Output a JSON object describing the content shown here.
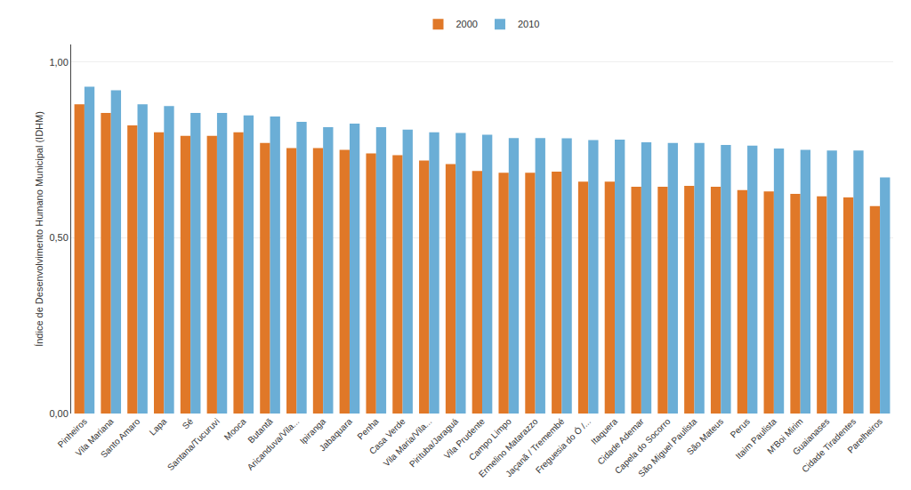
{
  "chart_data": {
    "type": "bar",
    "categories": [
      "Pinheiros",
      "Vila Mariana",
      "Santo Amaro",
      "Lapa",
      "Sé",
      "Santana/Tucuruvi",
      "Mooca",
      "Butantã",
      "Aricanduva/Vila...",
      "Ipiranga",
      "Jabaquara",
      "Penha",
      "Casa Verde",
      "Vila Maria/Vila...",
      "Pirituba/Jaraguá",
      "Vila Prudente",
      "Campo Limpo",
      "Ermelino Matarazzo",
      "Jaçanã / Tremembé",
      "Freguesia do Ó /...",
      "Itaquera",
      "Cidade Ademar",
      "Capela do Socorro",
      "São Miguel Paulista",
      "São Mateus",
      "Perus",
      "Itaim Paulista",
      "M'Boi Mirim",
      "Guaianases",
      "Cidade Tiradentes",
      "Parelheiros"
    ],
    "series": [
      {
        "name": "2000",
        "color": "#E07828",
        "values": [
          0.88,
          0.855,
          0.82,
          0.8,
          0.79,
          0.79,
          0.8,
          0.77,
          0.755,
          0.755,
          0.75,
          0.74,
          0.735,
          0.72,
          0.71,
          0.69,
          0.685,
          0.685,
          0.688,
          0.66,
          0.66,
          0.645,
          0.645,
          0.648,
          0.645,
          0.636,
          0.632,
          0.625,
          0.618,
          0.615,
          0.59
        ]
      },
      {
        "name": "2010",
        "color": "#6BAED6",
        "values": [
          0.93,
          0.92,
          0.88,
          0.875,
          0.855,
          0.855,
          0.848,
          0.845,
          0.83,
          0.815,
          0.825,
          0.815,
          0.808,
          0.8,
          0.798,
          0.793,
          0.784,
          0.784,
          0.783,
          0.778,
          0.779,
          0.772,
          0.77,
          0.77,
          0.764,
          0.762,
          0.754,
          0.75,
          0.748,
          0.748,
          0.672
        ]
      }
    ],
    "ylabel": "Índice de Desenvolvimento Humano Municipal (IDHM)",
    "ylim": [
      0,
      1.05
    ],
    "yticks": [
      {
        "value": 0.0,
        "label": "0,00"
      },
      {
        "value": 0.5,
        "label": "0,50"
      },
      {
        "value": 1.0,
        "label": "1,00"
      }
    ],
    "grid": true,
    "legend": "top"
  }
}
